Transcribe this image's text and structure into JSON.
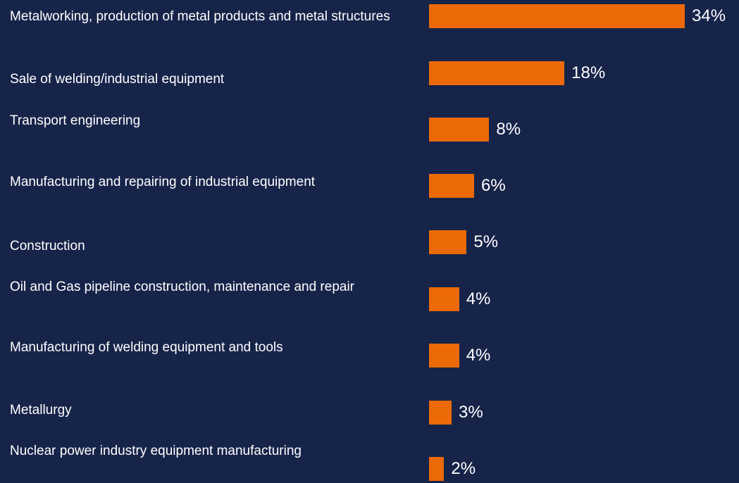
{
  "chart_data": {
    "type": "bar",
    "orientation": "horizontal",
    "title": "",
    "xlabel": "",
    "ylabel": "",
    "grid": false,
    "legend": "none",
    "xlim": [
      0,
      34
    ],
    "categories": [
      "Metalworking, production of metal products and metal structures",
      "Sale of welding/industrial equipment",
      "Transport engineering",
      "Manufacturing and repairing of industrial equipment",
      "Construction",
      "Oil and Gas pipeline construction, maintenance and repair",
      "Manufacturing of welding equipment and tools",
      "Metallurgy",
      "Nuclear power industry equipment manufacturing"
    ],
    "values": [
      34,
      18,
      8,
      6,
      5,
      4,
      4,
      3,
      2
    ],
    "value_labels": [
      "34%",
      "18%",
      "8%",
      "6%",
      "5%",
      "4%",
      "4%",
      "3%",
      "2%"
    ],
    "colors": {
      "background": "#16244a",
      "bar": "#eb6a05",
      "text": "#ffffff"
    }
  }
}
